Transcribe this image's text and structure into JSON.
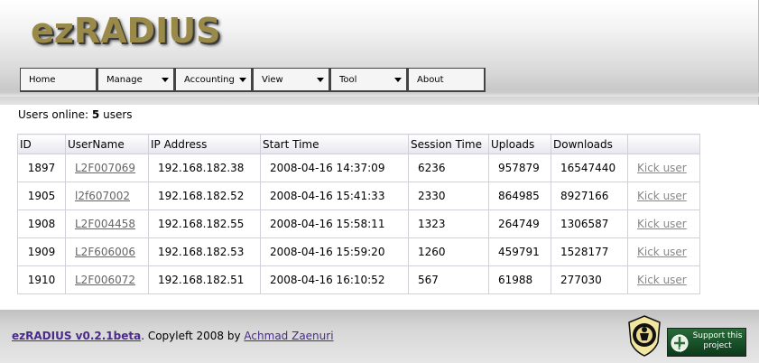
{
  "header": {
    "logo_text": "ezRADIUS"
  },
  "menu": [
    {
      "label": "Home",
      "has_dropdown": false
    },
    {
      "label": "Manage",
      "has_dropdown": true
    },
    {
      "label": "Accounting",
      "has_dropdown": true
    },
    {
      "label": "View",
      "has_dropdown": true
    },
    {
      "label": "Tool",
      "has_dropdown": true
    },
    {
      "label": "About",
      "has_dropdown": false
    }
  ],
  "online": {
    "prefix": "Users online:",
    "count": "5",
    "suffix": "users"
  },
  "table": {
    "headers": [
      "ID",
      "UserName",
      "IP Address",
      "Start Time",
      "Session Time",
      "Uploads",
      "Downloads",
      ""
    ],
    "kick_label": "Kick user",
    "rows": [
      {
        "id": "1897",
        "username": "L2F007069",
        "ip": "192.168.182.38",
        "start": "2008-04-16 14:37:09",
        "session": "6236",
        "uploads": "957879",
        "downloads": "16547440"
      },
      {
        "id": "1905",
        "username": "l2f607002",
        "ip": "192.168.182.52",
        "start": "2008-04-16 15:41:33",
        "session": "2330",
        "uploads": "864985",
        "downloads": "8927166"
      },
      {
        "id": "1908",
        "username": "L2F004458",
        "ip": "192.168.182.55",
        "start": "2008-04-16 15:58:11",
        "session": "1323",
        "uploads": "264749",
        "downloads": "1306587"
      },
      {
        "id": "1909",
        "username": "L2F606006",
        "ip": "192.168.182.53",
        "start": "2008-04-16 15:59:20",
        "session": "1260",
        "uploads": "459791",
        "downloads": "1528177"
      },
      {
        "id": "1910",
        "username": "L2F006072",
        "ip": "192.168.182.51",
        "start": "2008-04-16 16:10:52",
        "session": "567",
        "uploads": "61988",
        "downloads": "277030"
      }
    ]
  },
  "footer": {
    "app_link": "ezRADIUS v0.2.1beta",
    "copyleft": ". Copyleft 2008 by ",
    "author_link": "Achmad Zaenuri",
    "support_text": "Support this project",
    "support_dollar": "$"
  },
  "icons": {
    "seal": "university-seal-icon",
    "support": "sourceforge-donate-icon"
  },
  "colors": {
    "logo": "#9a8a4a",
    "link": "#666666",
    "footer_link": "#4a2a8a"
  }
}
